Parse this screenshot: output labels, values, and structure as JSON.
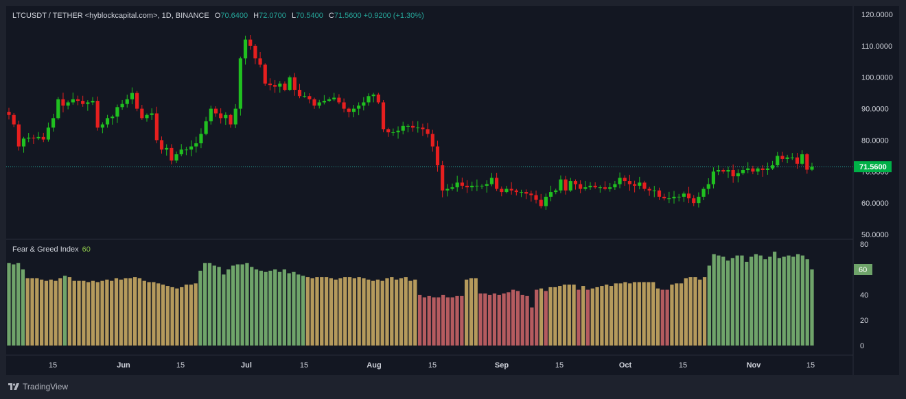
{
  "header": {
    "symbol": "LTCUSDT / TETHER <hyblockcapital.com>, 1D, BINANCE",
    "o_label": "O",
    "o_value": "70.6400",
    "h_label": "H",
    "h_value": "72.0700",
    "l_label": "L",
    "l_value": "70.5400",
    "c_label": "C",
    "c_value": "71.5600",
    "change": "+0.9200 (+1.30%)"
  },
  "indicator": {
    "name": "Fear & Greed Index",
    "value_label": "60"
  },
  "price_badge": "71.5600",
  "branding": {
    "name": "TradingView"
  },
  "colors": {
    "up": "#26a69a",
    "down": "#ef5350",
    "greed": "#6fa46a",
    "neutral": "#b59a5c",
    "fear": "#b55b5f",
    "badge": "#00b047"
  },
  "chart_data": [
    {
      "type": "candlestick",
      "title": "LTCUSDT / TETHER <hyblockcapital.com>, 1D, BINANCE",
      "ylim": [
        50,
        120
      ],
      "y_ticks": [
        "120.0000",
        "110.0000",
        "100.0000",
        "90.0000",
        "80.0000",
        "70.0000",
        "60.0000",
        "50.0000"
      ],
      "x_ticks": [
        "15",
        "Jun",
        "15",
        "Jul",
        "15",
        "Aug",
        "15",
        "Sep",
        "15",
        "Oct",
        "15",
        "Nov",
        "15"
      ],
      "last_price": 71.56,
      "close": [
        88.0,
        85.0,
        78.0,
        80.5,
        80.8,
        80.6,
        81.0,
        80.2,
        84.0,
        87.0,
        93.0,
        91.0,
        92.0,
        93.0,
        92.5,
        91.5,
        92.0,
        92.5,
        84.0,
        85.0,
        87.0,
        87.5,
        90.5,
        91.5,
        93.0,
        95.0,
        90.0,
        87.0,
        88.0,
        88.5,
        80.0,
        77.0,
        77.5,
        73.5,
        75.5,
        77.0,
        77.0,
        78.0,
        79.0,
        82.0,
        86.0,
        90.0,
        88.5,
        87.0,
        88.0,
        85.0,
        90.0,
        106.0,
        112.0,
        110.0,
        106.0,
        104.0,
        98.0,
        97.5,
        97.0,
        98.0,
        96.0,
        100.0,
        96.0,
        94.0,
        94.0,
        93.0,
        91.0,
        92.0,
        92.5,
        93.0,
        93.5,
        92.0,
        90.0,
        89.0,
        90.0,
        91.0,
        92.0,
        94.0,
        94.5,
        92.0,
        83.5,
        82.5,
        82.5,
        83.0,
        84.5,
        84.5,
        84.0,
        84.0,
        83.5,
        82.0,
        78.0,
        72.0,
        64.0,
        64.5,
        65.0,
        66.5,
        65.5,
        65.0,
        65.5,
        65.5,
        65.5,
        66.0,
        68.0,
        64.5,
        63.5,
        64.5,
        64.0,
        63.5,
        63.5,
        63.0,
        62.5,
        61.0,
        59.0,
        62.0,
        63.5,
        64.0,
        67.5,
        64.0,
        67.0,
        66.0,
        64.5,
        65.0,
        65.5,
        65.0,
        65.0,
        64.5,
        65.0,
        66.0,
        68.0,
        67.0,
        66.0,
        65.5,
        66.5,
        64.5,
        64.0,
        64.0,
        62.0,
        61.5,
        61.5,
        62.0,
        62.0,
        63.0,
        61.5,
        60.0,
        62.0,
        64.5,
        66.0,
        70.0,
        70.5,
        70.0,
        70.5,
        68.5,
        69.5,
        70.5,
        71.0,
        70.0,
        71.0,
        70.5,
        71.0,
        72.0,
        75.0,
        74.0,
        74.5,
        74.5,
        72.5,
        75.5,
        70.6,
        71.56
      ],
      "series": [
        {
          "name": "LTCUSDT",
          "values": []
        }
      ]
    },
    {
      "type": "bar",
      "title": "Fear & Greed Index",
      "ylim": [
        0,
        80
      ],
      "y_ticks": [
        "80",
        "60",
        "40",
        "20",
        "0"
      ],
      "current_value": 60,
      "values": [
        65,
        64,
        65,
        60,
        53,
        53,
        53,
        52,
        51,
        52,
        51,
        53,
        55,
        54,
        51,
        51,
        51,
        50,
        51,
        50,
        51,
        52,
        51,
        53,
        52,
        53,
        53,
        54,
        53,
        51,
        50,
        50,
        49,
        48,
        47,
        46,
        45,
        46,
        48,
        48,
        49,
        59,
        65,
        65,
        63,
        62,
        56,
        60,
        63,
        64,
        64,
        65,
        62,
        60,
        59,
        58,
        59,
        60,
        58,
        60,
        57,
        58,
        56,
        55,
        54,
        53,
        54,
        54,
        54,
        53,
        52,
        53,
        54,
        54,
        53,
        54,
        53,
        52,
        51,
        52,
        51,
        53,
        54,
        52,
        53,
        54,
        51,
        52,
        40,
        38,
        39,
        38,
        38,
        40,
        38,
        38,
        39,
        39,
        52,
        53,
        53,
        41,
        41,
        40,
        41,
        40,
        41,
        42,
        44,
        43,
        40,
        39,
        30,
        44,
        45,
        43,
        46,
        46,
        47,
        48,
        48,
        48,
        44,
        47,
        44,
        45,
        46,
        47,
        48,
        47,
        49,
        49,
        50,
        49,
        50,
        50,
        50,
        50,
        50,
        45,
        44,
        44,
        48,
        49,
        49,
        53,
        54,
        54,
        52,
        54,
        63,
        72,
        71,
        70,
        67,
        69,
        71,
        71,
        66,
        70,
        72,
        71,
        68,
        70,
        74,
        69,
        70,
        71,
        70,
        72,
        71,
        68,
        60
      ]
    }
  ]
}
